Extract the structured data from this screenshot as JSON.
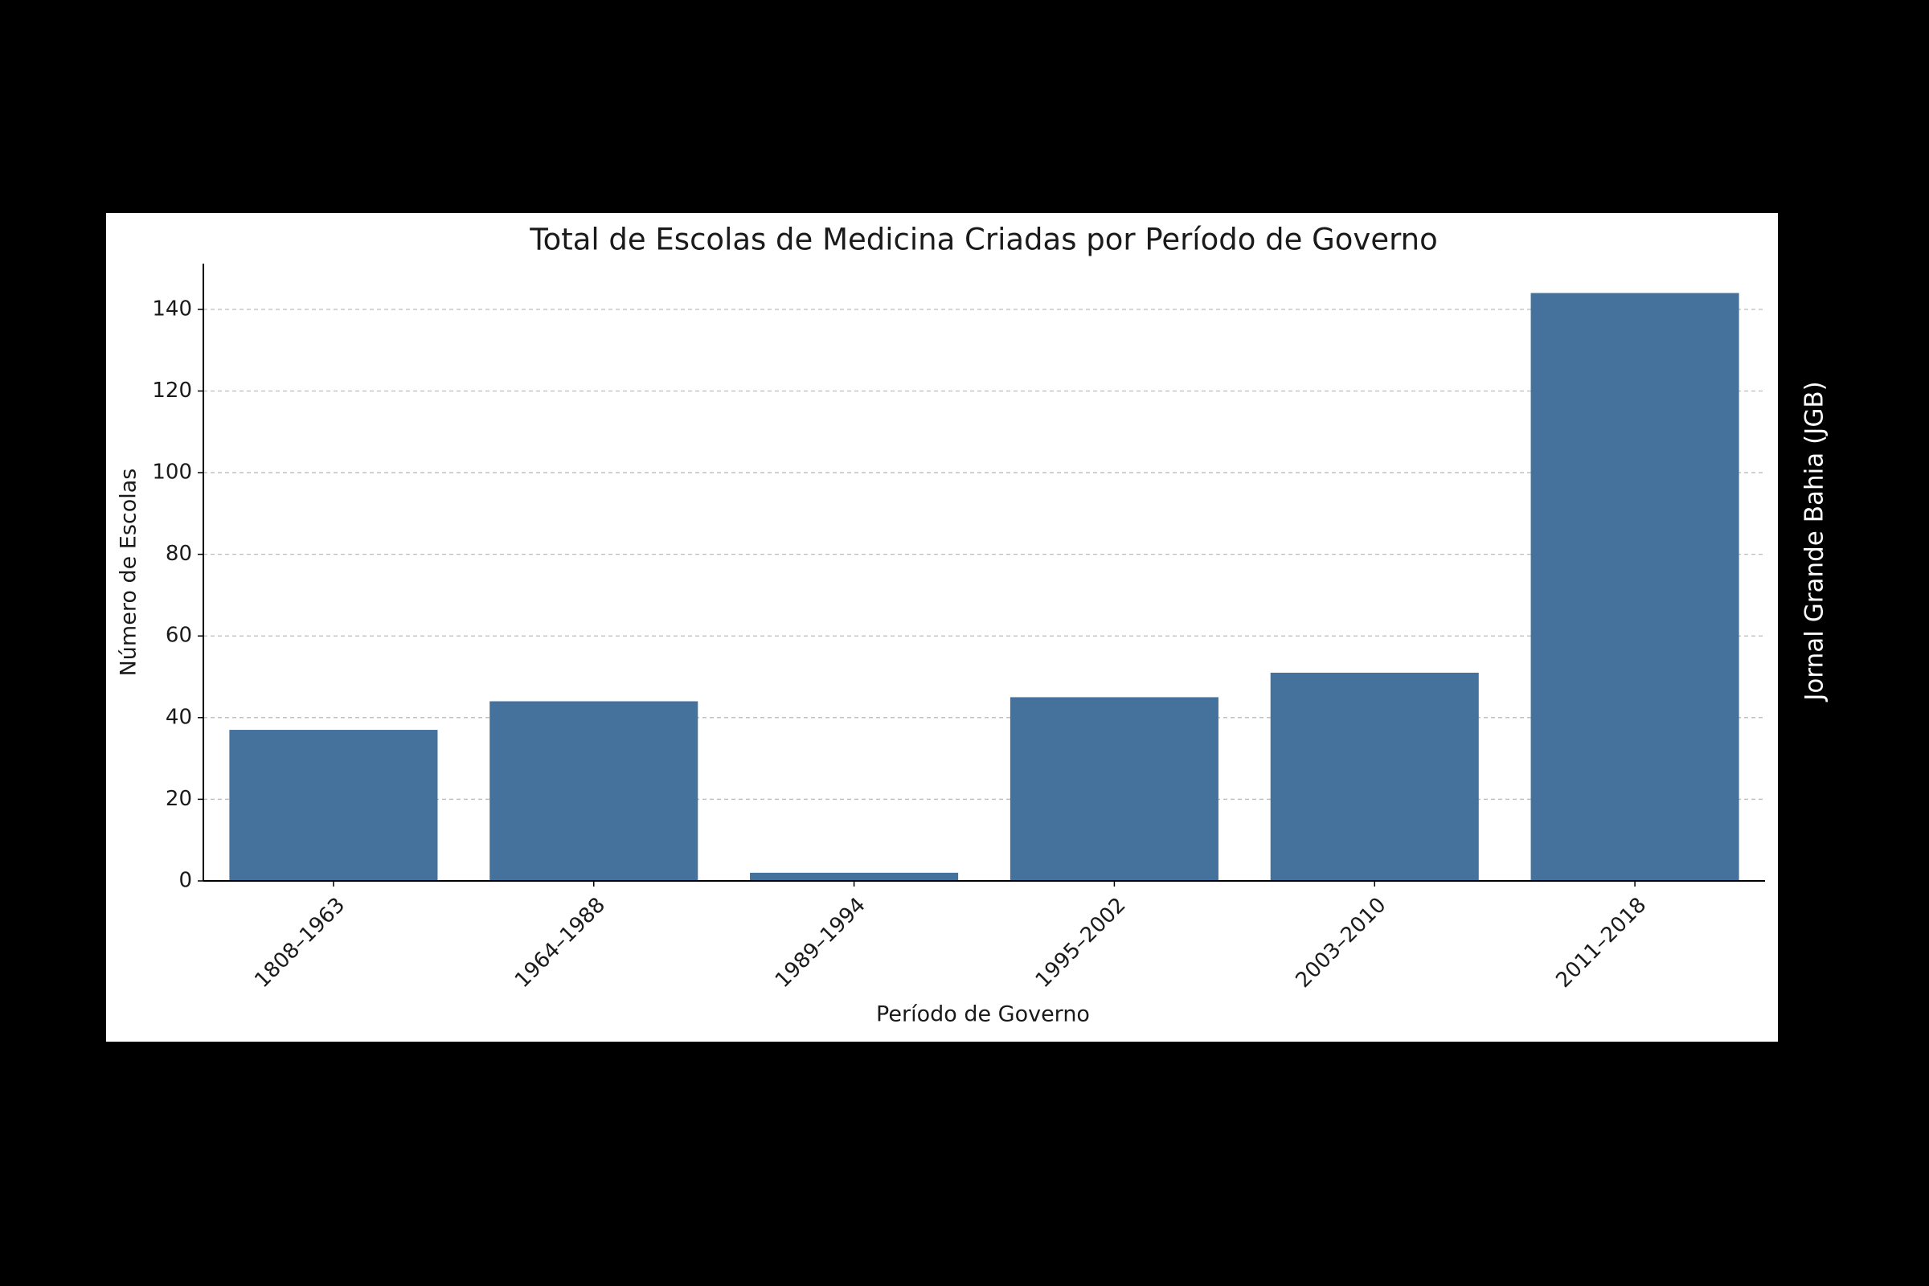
{
  "chart_data": {
    "type": "bar",
    "title": "Total de Escolas de Medicina Criadas por Período de Governo",
    "x_label": "Período de Governo",
    "y_label": "Número de Escolas",
    "watermark": "Jornal Grande Bahia (JGB)",
    "categories": [
      "1808–1963",
      "1964–1988",
      "1989–1994",
      "1995–2002",
      "2003–2010",
      "2011–2018"
    ],
    "values": [
      37,
      44,
      2,
      45,
      51,
      144
    ],
    "color": "#44729d",
    "ylim": [
      0,
      151.2
    ],
    "yticks": [
      0,
      20,
      40,
      60,
      80,
      100,
      120,
      140
    ],
    "grid": true
  }
}
